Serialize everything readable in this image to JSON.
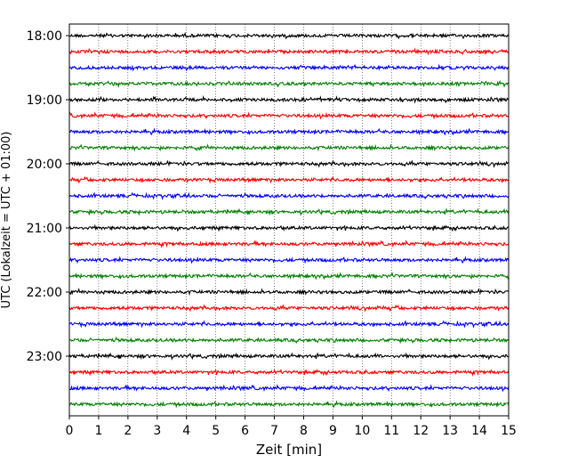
{
  "chart_data": {
    "type": "line",
    "title": "",
    "xlabel": "Zeit  [min]",
    "ylabel": "UTC (Lokalzeit = UTC + 01:00)",
    "xlim": [
      0,
      15
    ],
    "x_ticks": [
      0,
      1,
      2,
      3,
      4,
      5,
      6,
      7,
      8,
      9,
      10,
      11,
      12,
      13,
      14,
      15
    ],
    "y_ticks": [
      {
        "label": "18:00",
        "trace_index": 0
      },
      {
        "label": "19:00",
        "trace_index": 4
      },
      {
        "label": "20:00",
        "trace_index": 8
      },
      {
        "label": "21:00",
        "trace_index": 12
      },
      {
        "label": "22:00",
        "trace_index": 16
      },
      {
        "label": "23:00",
        "trace_index": 20
      }
    ],
    "grid": {
      "vertical": true,
      "horizontal": false,
      "style": "dotted"
    },
    "trace_colors": [
      "#000000",
      "#ff0000",
      "#0000ff",
      "#008000"
    ],
    "traces": [
      {
        "start": "18:00"
      },
      {
        "start": "18:15"
      },
      {
        "start": "18:30"
      },
      {
        "start": "18:45"
      },
      {
        "start": "19:00"
      },
      {
        "start": "19:15"
      },
      {
        "start": "19:30"
      },
      {
        "start": "19:45"
      },
      {
        "start": "20:00"
      },
      {
        "start": "20:15"
      },
      {
        "start": "20:30"
      },
      {
        "start": "20:45"
      },
      {
        "start": "21:00"
      },
      {
        "start": "21:15"
      },
      {
        "start": "21:30"
      },
      {
        "start": "21:45"
      },
      {
        "start": "22:00"
      },
      {
        "start": "22:15"
      },
      {
        "start": "22:30"
      },
      {
        "start": "22:45"
      },
      {
        "start": "23:00"
      },
      {
        "start": "23:15"
      },
      {
        "start": "23:30"
      },
      {
        "start": "23:45"
      }
    ]
  }
}
